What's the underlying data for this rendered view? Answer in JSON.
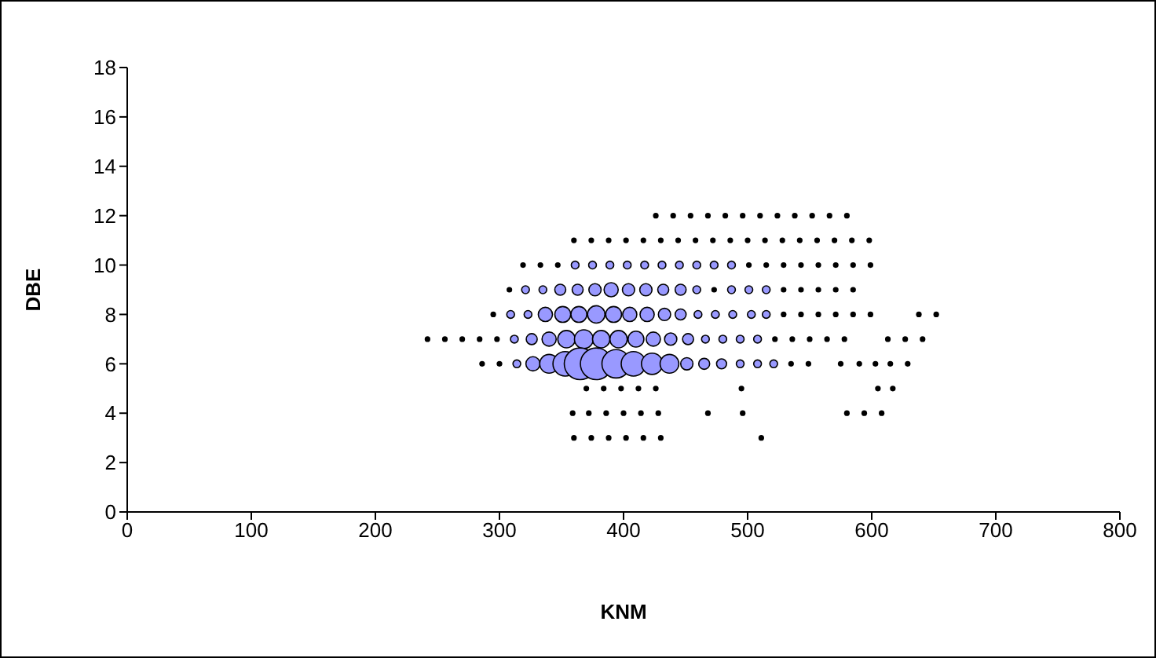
{
  "chart_data": {
    "type": "bubble",
    "xlabel": "KNM",
    "ylabel": "DBE",
    "xlim": [
      0,
      800
    ],
    "xticks": [
      0,
      100,
      200,
      300,
      400,
      500,
      600,
      700,
      800
    ],
    "ylim": [
      0,
      18
    ],
    "yticks": [
      0,
      2,
      4,
      6,
      8,
      10,
      12,
      14,
      16,
      18
    ],
    "series": [
      {
        "color": "#9999ff",
        "x": [
          361,
          375,
          389,
          403,
          417,
          431,
          445,
          459,
          473,
          487,
          321,
          335,
          349,
          363,
          377,
          390,
          404,
          418,
          432,
          446,
          459,
          487,
          501,
          515,
          309,
          323,
          337,
          351,
          364,
          378,
          392,
          405,
          419,
          433,
          446,
          460,
          474,
          488,
          503,
          515,
          312,
          326,
          340,
          354,
          368,
          382,
          396,
          410,
          424,
          438,
          452,
          466,
          480,
          494,
          508,
          314,
          327,
          340,
          353,
          365,
          378,
          394,
          408,
          423,
          437,
          451,
          465,
          479,
          494,
          508,
          521
        ],
        "values": [
          10,
          10,
          10,
          10,
          10,
          10,
          10,
          10,
          10,
          10,
          9,
          9,
          9,
          9,
          9,
          9,
          9,
          9,
          9,
          9,
          9,
          9,
          9,
          9,
          8,
          8,
          8,
          8,
          8,
          8,
          8,
          8,
          8,
          8,
          8,
          8,
          8,
          8,
          8,
          8,
          7,
          7,
          7,
          7,
          7,
          7,
          7,
          7,
          7,
          7,
          7,
          7,
          7,
          7,
          7,
          6,
          6,
          6,
          6,
          6,
          6,
          6,
          6,
          6,
          6,
          6,
          6,
          6,
          6,
          6,
          6
        ],
        "sizes": [
          0.06,
          0.06,
          0.06,
          0.06,
          0.06,
          0.06,
          0.06,
          0.06,
          0.06,
          0.06,
          0.06,
          0.06,
          0.12,
          0.12,
          0.15,
          0.2,
          0.15,
          0.15,
          0.12,
          0.12,
          0.06,
          0.06,
          0.06,
          0.06,
          0.06,
          0.06,
          0.2,
          0.25,
          0.25,
          0.3,
          0.25,
          0.2,
          0.2,
          0.15,
          0.12,
          0.06,
          0.06,
          0.06,
          0.06,
          0.06,
          0.06,
          0.12,
          0.2,
          0.3,
          0.35,
          0.3,
          0.3,
          0.25,
          0.2,
          0.15,
          0.12,
          0.06,
          0.06,
          0.06,
          0.06,
          0.06,
          0.2,
          0.35,
          0.6,
          1,
          1,
          0.8,
          0.6,
          0.45,
          0.35,
          0.15,
          0.12,
          0.1,
          0.06,
          0.06,
          0.06
        ]
      },
      {
        "type": "scatter",
        "color": "#000000",
        "x": [
          426,
          440,
          454,
          468,
          482,
          496,
          510,
          524,
          538,
          552,
          566,
          580,
          360,
          374,
          388,
          402,
          416,
          430,
          444,
          458,
          472,
          486,
          500,
          514,
          528,
          542,
          556,
          570,
          584,
          598,
          319,
          333,
          347,
          501,
          515,
          529,
          543,
          557,
          571,
          585,
          599,
          308,
          473,
          529,
          543,
          557,
          571,
          585,
          295,
          529,
          543,
          557,
          571,
          585,
          599,
          638,
          652,
          242,
          256,
          270,
          284,
          298,
          522,
          536,
          550,
          564,
          578,
          613,
          627,
          641,
          286,
          300,
          535,
          549,
          575,
          590,
          603,
          615,
          629,
          370,
          384,
          398,
          412,
          426,
          495,
          605,
          617,
          359,
          372,
          386,
          400,
          414,
          428,
          468,
          496,
          580,
          594,
          608,
          360,
          374,
          388,
          402,
          416,
          430,
          511
        ],
        "values": [
          12,
          12,
          12,
          12,
          12,
          12,
          12,
          12,
          12,
          12,
          12,
          12,
          11,
          11,
          11,
          11,
          11,
          11,
          11,
          11,
          11,
          11,
          11,
          11,
          11,
          11,
          11,
          11,
          11,
          11,
          10,
          10,
          10,
          10,
          10,
          10,
          10,
          10,
          10,
          10,
          10,
          9,
          9,
          9,
          9,
          9,
          9,
          9,
          8,
          8,
          8,
          8,
          8,
          8,
          8,
          8,
          8,
          7,
          7,
          7,
          7,
          7,
          7,
          7,
          7,
          7,
          7,
          7,
          7,
          7,
          6,
          6,
          6,
          6,
          6,
          6,
          6,
          6,
          6,
          5,
          5,
          5,
          5,
          5,
          5,
          5,
          5,
          4,
          4,
          4,
          4,
          4,
          4,
          4,
          4,
          4,
          4,
          4,
          3,
          3,
          3,
          3,
          3,
          3,
          3
        ]
      }
    ]
  }
}
